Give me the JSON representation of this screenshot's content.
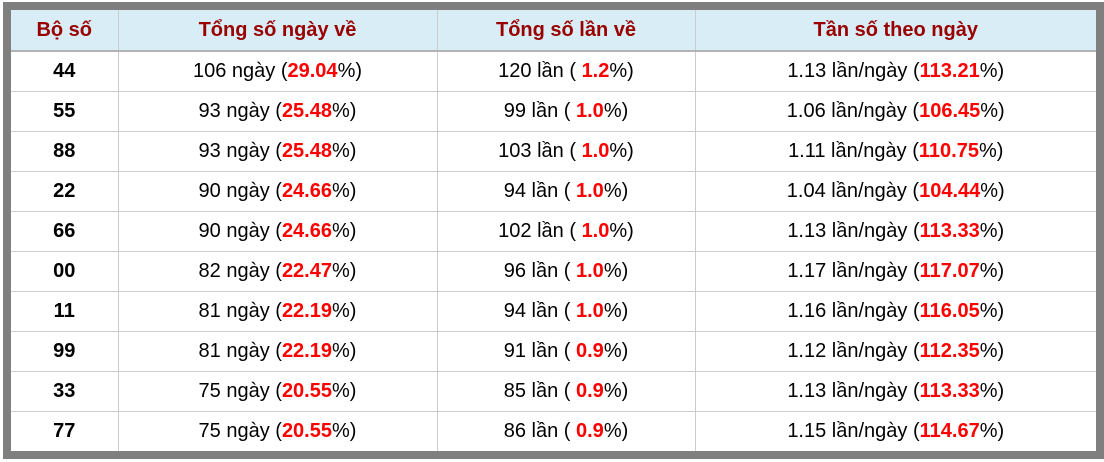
{
  "colors": {
    "frame": "#7f7f7f",
    "header_bg": "#d9edf7",
    "header_text": "#990000",
    "header_border": "#b3b3b3",
    "grid_line": "#cccccc",
    "highlight": "#ff0000"
  },
  "const": {
    "pct_close": "%)"
  },
  "table": {
    "columns": [
      {
        "label": "Bộ số"
      },
      {
        "label": "Tổng số ngày về"
      },
      {
        "label": "Tổng số lần về"
      },
      {
        "label": "Tần số theo ngày"
      }
    ],
    "rows": [
      {
        "pair": "44",
        "days_prefix": "106 ngày (",
        "days_pct": "29.04",
        "times_prefix": "120 lần ( ",
        "times_pct": "1.2",
        "freq_prefix": "1.13 lần/ngày (",
        "freq_pct": "113.21"
      },
      {
        "pair": "55",
        "days_prefix": "93 ngày (",
        "days_pct": "25.48",
        "times_prefix": "99 lần ( ",
        "times_pct": "1.0",
        "freq_prefix": "1.06 lần/ngày (",
        "freq_pct": "106.45"
      },
      {
        "pair": "88",
        "days_prefix": "93 ngày (",
        "days_pct": "25.48",
        "times_prefix": "103 lần ( ",
        "times_pct": "1.0",
        "freq_prefix": "1.11 lần/ngày (",
        "freq_pct": "110.75"
      },
      {
        "pair": "22",
        "days_prefix": "90 ngày (",
        "days_pct": "24.66",
        "times_prefix": "94 lần ( ",
        "times_pct": "1.0",
        "freq_prefix": "1.04 lần/ngày (",
        "freq_pct": "104.44"
      },
      {
        "pair": "66",
        "days_prefix": "90 ngày (",
        "days_pct": "24.66",
        "times_prefix": "102 lần ( ",
        "times_pct": "1.0",
        "freq_prefix": "1.13 lần/ngày (",
        "freq_pct": "113.33"
      },
      {
        "pair": "00",
        "days_prefix": "82 ngày (",
        "days_pct": "22.47",
        "times_prefix": "96 lần ( ",
        "times_pct": "1.0",
        "freq_prefix": "1.17 lần/ngày (",
        "freq_pct": "117.07"
      },
      {
        "pair": "11",
        "days_prefix": "81 ngày (",
        "days_pct": "22.19",
        "times_prefix": "94 lần ( ",
        "times_pct": "1.0",
        "freq_prefix": "1.16 lần/ngày (",
        "freq_pct": "116.05"
      },
      {
        "pair": "99",
        "days_prefix": "81 ngày (",
        "days_pct": "22.19",
        "times_prefix": "91 lần ( ",
        "times_pct": "0.9",
        "freq_prefix": "1.12 lần/ngày (",
        "freq_pct": "112.35"
      },
      {
        "pair": "33",
        "days_prefix": "75 ngày (",
        "days_pct": "20.55",
        "times_prefix": "85 lần ( ",
        "times_pct": "0.9",
        "freq_prefix": "1.13 lần/ngày (",
        "freq_pct": "113.33"
      },
      {
        "pair": "77",
        "days_prefix": "75 ngày (",
        "days_pct": "20.55",
        "times_prefix": "86 lần ( ",
        "times_pct": "0.9",
        "freq_prefix": "1.15 lần/ngày (",
        "freq_pct": "114.67"
      }
    ]
  }
}
